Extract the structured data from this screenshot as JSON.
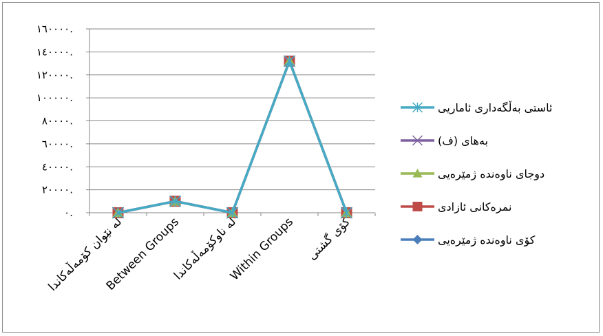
{
  "chart_data": {
    "type": "line",
    "categories": [
      "لە نێوان کۆمەڵەکاندا",
      "Between Groups",
      "لە ناوکۆمەڵەکاندا",
      "Within Groups",
      "کۆی گشتی"
    ],
    "ylim": [
      0,
      160000
    ],
    "yticks": [
      {
        "value": 0,
        "label": "٠."
      },
      {
        "value": 20000,
        "label": "٢٠٠٠٠."
      },
      {
        "value": 40000,
        "label": "٤٠٠٠٠."
      },
      {
        "value": 60000,
        "label": "٦٠٠٠٠."
      },
      {
        "value": 80000,
        "label": "٨٠٠٠٠."
      },
      {
        "value": 100000,
        "label": "١٠٠٠٠٠."
      },
      {
        "value": 120000,
        "label": "١٢٠٠٠٠."
      },
      {
        "value": 140000,
        "label": "١٤٠٠٠٠."
      },
      {
        "value": 160000,
        "label": "١٦٠٠٠٠."
      }
    ],
    "grid": true,
    "legend_position": "right",
    "series": [
      {
        "name": "کۆی ناوەندە ژمێرەیی",
        "color": "#4a7ebb",
        "marker": "diamond",
        "values": [
          0,
          10000,
          0,
          132000,
          0
        ]
      },
      {
        "name": "نمرەکانی ئازادی",
        "color": "#be4b48",
        "marker": "square",
        "values": [
          0,
          10000,
          0,
          132000,
          0
        ]
      },
      {
        "name": "دوجای ناوەندە ژمێرەیی",
        "color": "#98b954",
        "marker": "triangle",
        "values": [
          0,
          10000,
          0,
          132000,
          0
        ]
      },
      {
        "name": "بەهای (ف)",
        "color": "#7d60a0",
        "marker": "x",
        "values": [
          0,
          10000,
          0,
          132000,
          0
        ]
      },
      {
        "name": "ئاستی بەڵگەداری ئاماریی",
        "color": "#46aac5",
        "marker": "asterisk",
        "values": [
          0,
          10000,
          0,
          132000,
          0
        ]
      }
    ]
  },
  "chart_data_note_fix": "",
  "colors": {
    "grid": "#868686",
    "frame": "#8a8a8a"
  }
}
